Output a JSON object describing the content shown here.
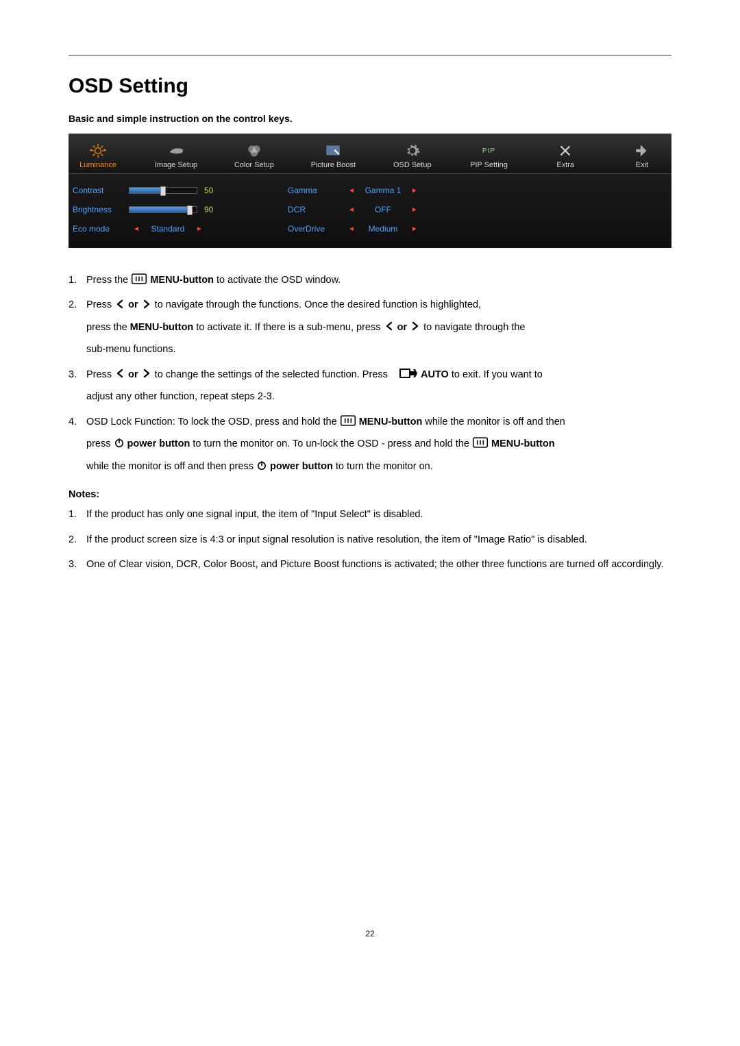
{
  "page_number": "22",
  "title": "OSD Setting",
  "subtitle": "Basic and simple instruction on the control keys.",
  "osd": {
    "panel_bg_top": "#343434",
    "panel_bg_bottom": "#0e0e0e",
    "label_color": "#4da3ff",
    "value_green": "#b9e05a",
    "arrow_red": "#ff4040",
    "active_orange": "#ff8c00",
    "tabs": [
      {
        "label": "Luminance",
        "active": true
      },
      {
        "label": "Image Setup",
        "active": false
      },
      {
        "label": "Color Setup",
        "active": false
      },
      {
        "label": "Picture Boost",
        "active": false
      },
      {
        "label": "OSD Setup",
        "active": false
      },
      {
        "label": "PIP Setting",
        "active": false,
        "pip": "PIP"
      },
      {
        "label": "Extra",
        "active": false
      },
      {
        "label": "Exit",
        "active": false
      }
    ],
    "left_rows": [
      {
        "label": "Contrast",
        "type": "slider",
        "value": 50,
        "min": 0,
        "max": 100
      },
      {
        "label": "Brightness",
        "type": "slider",
        "value": 90,
        "min": 0,
        "max": 100
      },
      {
        "label": "Eco mode",
        "type": "select",
        "value": "Standard"
      }
    ],
    "right_rows": [
      {
        "label": "Gamma",
        "value": "Gamma 1"
      },
      {
        "label": "DCR",
        "value": "OFF"
      },
      {
        "label": "OverDrive",
        "value": "Medium"
      }
    ]
  },
  "instructions": [
    {
      "num": "1.",
      "lines": [
        [
          {
            "t": "text",
            "v": "Press the "
          },
          {
            "t": "icon",
            "v": "menu"
          },
          {
            "t": "text",
            "v": " "
          },
          {
            "t": "bold",
            "v": "MENU-button"
          },
          {
            "t": "text",
            "v": " to activate the OSD window."
          }
        ]
      ]
    },
    {
      "num": "2.",
      "lines": [
        [
          {
            "t": "text",
            "v": "Press "
          },
          {
            "t": "icon",
            "v": "lt"
          },
          {
            "t": "text",
            "v": " "
          },
          {
            "t": "bold",
            "v": "or"
          },
          {
            "t": "text",
            "v": " "
          },
          {
            "t": "icon",
            "v": "gt"
          },
          {
            "t": "text",
            "v": " to navigate through the functions. Once the desired function is highlighted,"
          }
        ],
        [
          {
            "t": "text",
            "v": "press the "
          },
          {
            "t": "bold",
            "v": "MENU-button"
          },
          {
            "t": "text",
            "v": " to activate it. If there is a sub-menu, press "
          },
          {
            "t": "icon",
            "v": "lt"
          },
          {
            "t": "text",
            "v": " "
          },
          {
            "t": "bold",
            "v": "or"
          },
          {
            "t": "text",
            "v": " "
          },
          {
            "t": "icon",
            "v": "gt"
          },
          {
            "t": "text",
            "v": " to navigate through the"
          }
        ],
        [
          {
            "t": "text",
            "v": "sub-menu functions."
          }
        ]
      ]
    },
    {
      "num": "3.",
      "lines": [
        [
          {
            "t": "text",
            "v": "Press "
          },
          {
            "t": "icon",
            "v": "lt"
          },
          {
            "t": "text",
            "v": " "
          },
          {
            "t": "bold",
            "v": "or"
          },
          {
            "t": "text",
            "v": " "
          },
          {
            "t": "icon",
            "v": "gt"
          },
          {
            "t": "text",
            "v": " to change the settings of the selected function. Press    "
          },
          {
            "t": "icon",
            "v": "auto"
          },
          {
            "t": "text",
            "v": " "
          },
          {
            "t": "bold",
            "v": "AUTO"
          },
          {
            "t": "text",
            "v": " to exit. If you want to"
          }
        ],
        [
          {
            "t": "text",
            "v": "adjust any other function, repeat steps 2-3."
          }
        ]
      ]
    },
    {
      "num": "4.",
      "lines": [
        [
          {
            "t": "text",
            "v": "OSD Lock Function: To lock the OSD, press and hold the "
          },
          {
            "t": "icon",
            "v": "menu"
          },
          {
            "t": "text",
            "v": " "
          },
          {
            "t": "bold",
            "v": "MENU-button"
          },
          {
            "t": "text",
            "v": " while the monitor is off and then"
          }
        ],
        [
          {
            "t": "text",
            "v": "press "
          },
          {
            "t": "icon",
            "v": "power"
          },
          {
            "t": "text",
            "v": " "
          },
          {
            "t": "bold",
            "v": "power button"
          },
          {
            "t": "text",
            "v": " to turn the monitor on. To un-lock the OSD - press and hold the "
          },
          {
            "t": "icon",
            "v": "menu"
          },
          {
            "t": "text",
            "v": " "
          },
          {
            "t": "bold",
            "v": "MENU-button"
          }
        ],
        [
          {
            "t": "text",
            "v": "while the monitor is off and then press "
          },
          {
            "t": "icon",
            "v": "power"
          },
          {
            "t": "text",
            "v": " "
          },
          {
            "t": "bold",
            "v": "power button"
          },
          {
            "t": "text",
            "v": " to turn the monitor on."
          }
        ]
      ]
    }
  ],
  "notes_heading": "Notes:",
  "notes": [
    {
      "num": "1.",
      "text": "If the product has only one signal input, the item of \"Input Select\" is disabled."
    },
    {
      "num": "2.",
      "text": "If the product screen size is 4:3 or input signal resolution is native resolution, the item of \"Image Ratio\" is disabled."
    },
    {
      "num": "3.",
      "text": "One of Clear vision, DCR, Color Boost, and Picture Boost functions is activated; the other three functions are turned off accordingly."
    }
  ]
}
